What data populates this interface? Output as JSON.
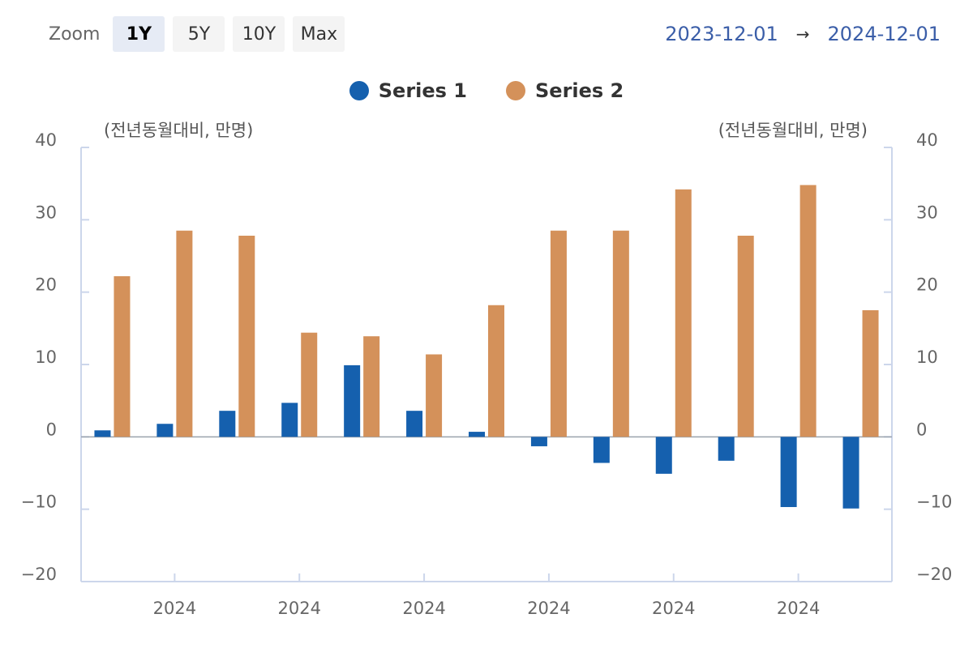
{
  "toolbar": {
    "zoom_label": "Zoom",
    "zoom_options": [
      "1Y",
      "5Y",
      "10Y",
      "Max"
    ],
    "zoom_selected": "1Y",
    "date_from": "2023-12-01",
    "arrow": "→",
    "date_to": "2024-12-01"
  },
  "chart_data": {
    "type": "bar",
    "categories": [
      "",
      "",
      "",
      "",
      "",
      "",
      "",
      "",
      "",
      "",
      "",
      "",
      ""
    ],
    "series": [
      {
        "name": "Series 1",
        "color": "#1560ae",
        "values": [
          0.9,
          1.8,
          3.6,
          4.7,
          9.9,
          3.6,
          0.7,
          -1.3,
          -3.6,
          -5.1,
          -3.3,
          -9.7,
          -9.9
        ]
      },
      {
        "name": "Series 2",
        "color": "#d4915a",
        "values": [
          22.2,
          28.5,
          27.8,
          14.4,
          13.9,
          11.4,
          18.2,
          28.5,
          28.5,
          34.2,
          27.8,
          34.8,
          17.5
        ]
      }
    ],
    "ylim": [
      -20,
      40
    ],
    "yticks": [
      -20,
      -10,
      0,
      10,
      20,
      30,
      40
    ],
    "ytick_labels": [
      "−20",
      "−10",
      "0",
      "10",
      "20",
      "30",
      "40"
    ],
    "ylabel_left": "(전년동월대비, 만명)",
    "ylabel_right": "(전년동월대비, 만명)",
    "xtick_labels": [
      "2024",
      "2024",
      "2024",
      "2024",
      "2024",
      "2024"
    ],
    "legend_position": "top-center",
    "grid": false
  }
}
